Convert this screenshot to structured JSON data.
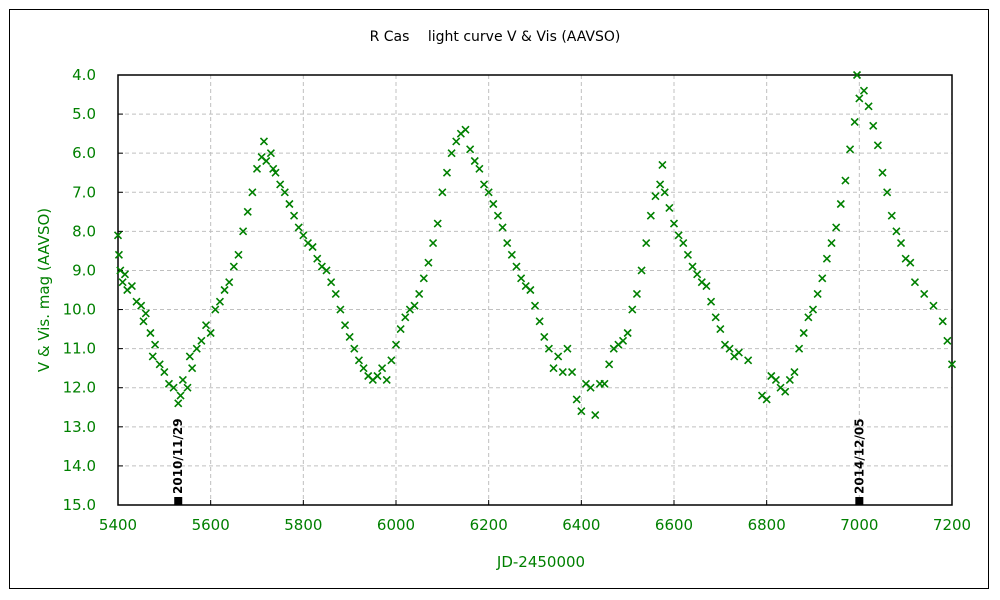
{
  "chart_data": {
    "type": "scatter",
    "title": "R Cas　 light curve V & Vis (AAVSO)",
    "xlabel": "JD-2450000",
    "ylabel": "V & Vis. mag (AAVSO)",
    "xlim": [
      5400,
      7200
    ],
    "ylim": [
      4.0,
      15.0
    ],
    "y_inverted": true,
    "grid": true,
    "xticks": [
      "5400",
      "5600",
      "5800",
      "6000",
      "6200",
      "6400",
      "6600",
      "6800",
      "7000",
      "7200"
    ],
    "yticks": [
      "4.0",
      "5.0",
      "6.0",
      "7.0",
      "8.0",
      "9.0",
      "10.0",
      "11.0",
      "12.0",
      "13.0",
      "14.0",
      "15.0"
    ],
    "marker": "x",
    "color": "#008000",
    "annotations": [
      {
        "label": "2010/11/29",
        "x": 5530
      },
      {
        "label": "2014/12/05",
        "x": 7000
      }
    ],
    "series": [
      {
        "x": [
          5400,
          5402,
          5405,
          5410,
          5415,
          5420,
          5430,
          5440,
          5450,
          5455,
          5460,
          5470,
          5475,
          5480,
          5490,
          5500,
          5510,
          5520,
          5530,
          5535,
          5540,
          5550,
          5555,
          5560,
          5570,
          5580,
          5590,
          5600,
          5610,
          5620,
          5630,
          5640,
          5650,
          5660,
          5670,
          5680,
          5690,
          5700,
          5710,
          5715,
          5720,
          5730,
          5735,
          5740,
          5750,
          5760,
          5770,
          5780,
          5790,
          5800,
          5810,
          5820,
          5830,
          5840,
          5850,
          5860,
          5870,
          5880,
          5890,
          5900,
          5910,
          5920,
          5930,
          5940,
          5950,
          5960,
          5970,
          5980,
          5990,
          6000,
          6010,
          6020,
          6030,
          6040,
          6050,
          6060,
          6070,
          6080,
          6090,
          6100,
          6110,
          6120,
          6130,
          6140,
          6150,
          6160,
          6170,
          6180,
          6190,
          6200,
          6210,
          6220,
          6230,
          6240,
          6250,
          6260,
          6270,
          6280,
          6290,
          6300,
          6310,
          6320,
          6330,
          6340,
          6350,
          6360,
          6370,
          6380,
          6390,
          6400,
          6410,
          6420,
          6430,
          6440,
          6450,
          6460,
          6470,
          6480,
          6490,
          6500,
          6510,
          6520,
          6530,
          6540,
          6550,
          6560,
          6570,
          6575,
          6580,
          6590,
          6600,
          6610,
          6620,
          6630,
          6640,
          6650,
          6660,
          6670,
          6680,
          6690,
          6700,
          6710,
          6720,
          6730,
          6740,
          6760,
          6790,
          6800,
          6810,
          6820,
          6830,
          6840,
          6850,
          6860,
          6870,
          6880,
          6890,
          6900,
          6910,
          6920,
          6930,
          6940,
          6950,
          6960,
          6970,
          6980,
          6990,
          6995,
          7000,
          7010,
          7020,
          7030,
          7040,
          7050,
          7060,
          7070,
          7080,
          7090,
          7100,
          7110,
          7120,
          7140,
          7160,
          7180,
          7190,
          7200
        ],
        "y": [
          8.1,
          8.6,
          9.0,
          9.3,
          9.1,
          9.5,
          9.4,
          9.8,
          9.9,
          10.3,
          10.1,
          10.6,
          11.2,
          10.9,
          11.4,
          11.6,
          11.9,
          12.0,
          12.4,
          12.2,
          11.8,
          12.0,
          11.2,
          11.5,
          11.0,
          10.8,
          10.4,
          10.6,
          10.0,
          9.8,
          9.5,
          9.3,
          8.9,
          8.6,
          8.0,
          7.5,
          7.0,
          6.4,
          6.1,
          5.7,
          6.2,
          6.0,
          6.4,
          6.5,
          6.8,
          7.0,
          7.3,
          7.6,
          7.9,
          8.1,
          8.3,
          8.4,
          8.7,
          8.9,
          9.0,
          9.3,
          9.6,
          10.0,
          10.4,
          10.7,
          11.0,
          11.3,
          11.5,
          11.7,
          11.8,
          11.7,
          11.5,
          11.8,
          11.3,
          10.9,
          10.5,
          10.2,
          10.0,
          9.9,
          9.6,
          9.2,
          8.8,
          8.3,
          7.8,
          7.0,
          6.5,
          6.0,
          5.7,
          5.5,
          5.4,
          5.9,
          6.2,
          6.4,
          6.8,
          7.0,
          7.3,
          7.6,
          7.9,
          8.3,
          8.6,
          8.9,
          9.2,
          9.4,
          9.5,
          9.9,
          10.3,
          10.7,
          11.0,
          11.5,
          11.2,
          11.6,
          11.0,
          11.6,
          12.3,
          12.6,
          11.9,
          12.0,
          12.7,
          11.9,
          11.9,
          11.4,
          11.0,
          10.9,
          10.8,
          10.6,
          10.0,
          9.6,
          9.0,
          8.3,
          7.6,
          7.1,
          6.8,
          6.3,
          7.0,
          7.4,
          7.8,
          8.1,
          8.3,
          8.6,
          8.9,
          9.1,
          9.3,
          9.4,
          9.8,
          10.2,
          10.5,
          10.9,
          11.0,
          11.2,
          11.1,
          11.3,
          12.2,
          12.3,
          11.7,
          11.8,
          12.0,
          12.1,
          11.8,
          11.6,
          11.0,
          10.6,
          10.2,
          10.0,
          9.6,
          9.2,
          8.7,
          8.3,
          7.9,
          7.3,
          6.7,
          5.9,
          5.2,
          4.0,
          4.6,
          4.4,
          4.8,
          5.3,
          5.8,
          6.5,
          7.0,
          7.6,
          8.0,
          8.3,
          8.7,
          8.8,
          9.3,
          9.6,
          9.9,
          10.3,
          10.8,
          11.4
        ]
      }
    ]
  }
}
